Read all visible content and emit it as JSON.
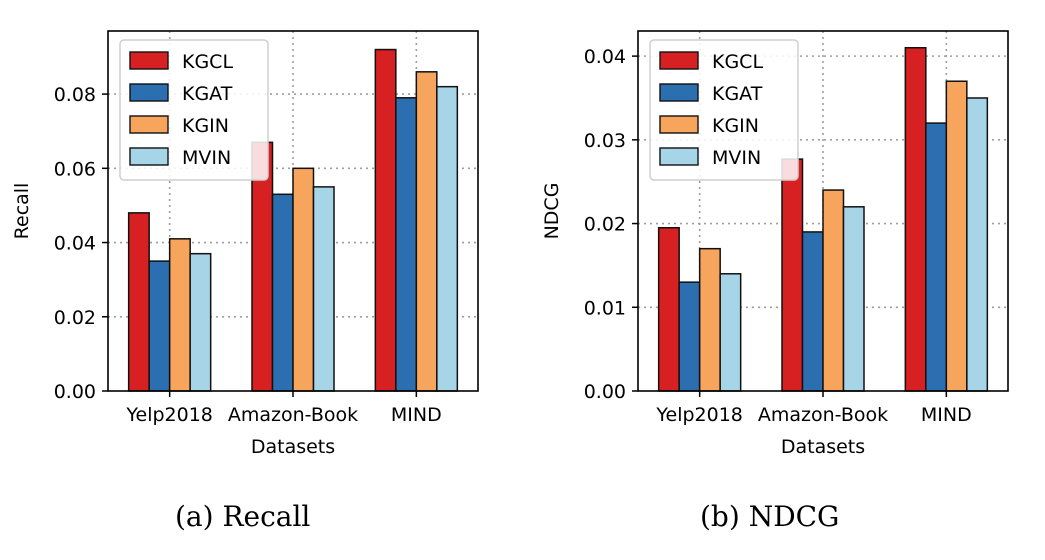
{
  "colors": {
    "KGCL": "#d62022",
    "KGAT": "#2c6fb0",
    "KGIN": "#f7a55c",
    "MVIN": "#a6d5e8",
    "grid": "#9e9e9e"
  },
  "chart_data": [
    {
      "type": "bar",
      "categories": [
        "Yelp2018",
        "Amazon-Book",
        "MIND"
      ],
      "series": [
        {
          "name": "KGCL",
          "values": [
            0.048,
            0.067,
            0.092
          ]
        },
        {
          "name": "KGAT",
          "values": [
            0.035,
            0.053,
            0.079
          ]
        },
        {
          "name": "KGIN",
          "values": [
            0.041,
            0.06,
            0.086
          ]
        },
        {
          "name": "MVIN",
          "values": [
            0.037,
            0.055,
            0.082
          ]
        }
      ],
      "xlabel": "Datasets",
      "ylabel": "Recall",
      "ylim": [
        0,
        0.097
      ],
      "yticks": [
        0.0,
        0.02,
        0.04,
        0.06,
        0.08
      ],
      "ytick_labels": [
        "0.00",
        "0.02",
        "0.04",
        "0.06",
        "0.08"
      ],
      "grid": true,
      "legend": "top-left"
    },
    {
      "type": "bar",
      "categories": [
        "Yelp2018",
        "Amazon-Book",
        "MIND"
      ],
      "series": [
        {
          "name": "KGCL",
          "values": [
            0.0195,
            0.0277,
            0.041
          ]
        },
        {
          "name": "KGAT",
          "values": [
            0.013,
            0.019,
            0.032
          ]
        },
        {
          "name": "KGIN",
          "values": [
            0.017,
            0.024,
            0.037
          ]
        },
        {
          "name": "MVIN",
          "values": [
            0.014,
            0.022,
            0.035
          ]
        }
      ],
      "xlabel": "Datasets",
      "ylabel": "NDCG",
      "ylim": [
        0,
        0.043
      ],
      "yticks": [
        0.0,
        0.01,
        0.02,
        0.03,
        0.04
      ],
      "ytick_labels": [
        "0.00",
        "0.01",
        "0.02",
        "0.03",
        "0.04"
      ],
      "grid": true,
      "legend": "top-left"
    }
  ],
  "captions": [
    {
      "label": "(a)",
      "text": "Recall"
    },
    {
      "label": "(b)",
      "text": "NDCG"
    }
  ]
}
